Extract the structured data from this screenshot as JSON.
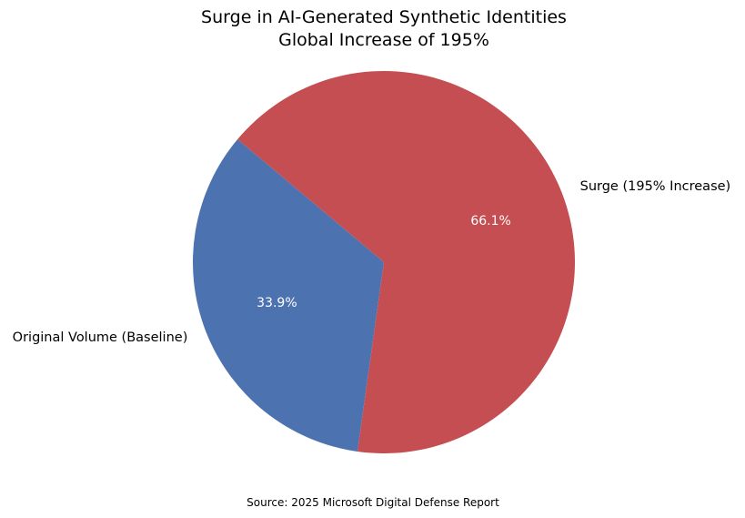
{
  "chart_data": {
    "type": "pie",
    "title": "Surge in AI-Generated Synthetic Identities",
    "subtitle": "Global Increase of 195%",
    "slices": [
      {
        "label": "Original Volume (Baseline)",
        "value": 33.9,
        "pct_label": "33.9%",
        "color": "#4c72b0"
      },
      {
        "label": "Surge (195% Increase)",
        "value": 66.1,
        "pct_label": "66.1%",
        "color": "#c44e52"
      }
    ],
    "source": "Source: 2025 Microsoft Digital Defense Report"
  }
}
